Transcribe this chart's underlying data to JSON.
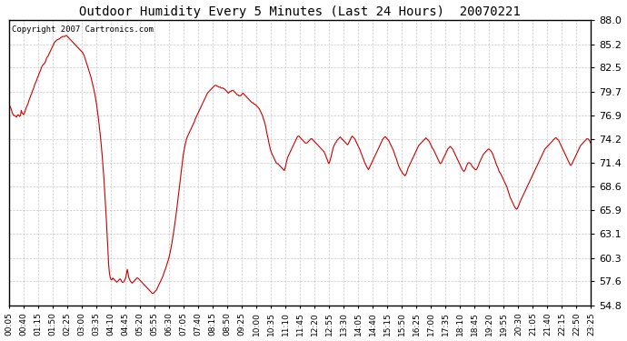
{
  "title": "Outdoor Humidity Every 5 Minutes (Last 24 Hours)  20070221",
  "copyright": "Copyright 2007 Cartronics.com",
  "line_color": "#cc0000",
  "bg_color": "#ffffff",
  "plot_bg_color": "#ffffff",
  "grid_color": "#bbbbbb",
  "ylim": [
    54.8,
    88.0
  ],
  "yticks": [
    54.8,
    57.6,
    60.3,
    63.1,
    65.9,
    68.6,
    71.4,
    74.2,
    76.9,
    79.7,
    82.5,
    85.2,
    88.0
  ],
  "xtick_labels": [
    "00:05",
    "00:40",
    "01:15",
    "01:50",
    "02:25",
    "03:00",
    "03:35",
    "04:10",
    "04:45",
    "05:20",
    "05:55",
    "06:30",
    "07:05",
    "07:40",
    "08:15",
    "08:50",
    "09:25",
    "10:00",
    "10:35",
    "11:10",
    "11:45",
    "12:20",
    "12:55",
    "13:30",
    "14:05",
    "14:40",
    "15:15",
    "15:50",
    "16:25",
    "17:00",
    "17:35",
    "18:10",
    "18:45",
    "19:20",
    "19:55",
    "20:30",
    "21:05",
    "21:40",
    "22:15",
    "22:50",
    "23:25"
  ],
  "humidity_values": [
    78.2,
    78.0,
    77.8,
    77.5,
    77.2,
    77.0,
    76.9,
    76.9,
    76.8,
    76.7,
    76.9,
    77.0,
    76.9,
    76.8,
    76.9,
    77.5,
    77.2,
    77.1,
    77.0,
    77.2,
    77.5,
    77.8,
    78.0,
    78.2,
    78.5,
    78.8,
    79.0,
    79.3,
    79.5,
    79.8,
    80.0,
    80.3,
    80.6,
    80.8,
    81.0,
    81.3,
    81.5,
    81.8,
    82.0,
    82.2,
    82.5,
    82.7,
    82.8,
    82.9,
    83.0,
    83.2,
    83.5,
    83.7,
    83.8,
    84.0,
    84.2,
    84.4,
    84.6,
    84.8,
    85.0,
    85.2,
    85.4,
    85.5,
    85.6,
    85.7,
    85.7,
    85.8,
    85.8,
    85.9,
    86.0,
    86.0,
    86.1,
    86.1,
    86.1,
    86.1,
    86.2,
    86.2,
    86.1,
    86.0,
    85.9,
    85.8,
    85.7,
    85.6,
    85.5,
    85.4,
    85.3,
    85.2,
    85.1,
    85.0,
    84.9,
    84.8,
    84.7,
    84.6,
    84.5,
    84.4,
    84.3,
    84.2,
    84.0,
    83.8,
    83.5,
    83.2,
    82.9,
    82.6,
    82.3,
    82.0,
    81.7,
    81.4,
    81.0,
    80.6,
    80.2,
    79.8,
    79.3,
    78.8,
    78.2,
    77.5,
    76.8,
    76.0,
    75.2,
    74.3,
    73.3,
    72.2,
    71.0,
    69.7,
    68.2,
    66.6,
    65.0,
    63.2,
    61.3,
    59.5,
    58.5,
    58.0,
    57.8,
    57.8,
    58.0,
    57.9,
    57.8,
    57.7,
    57.6,
    57.5,
    57.6,
    57.7,
    57.8,
    57.9,
    57.8,
    57.6,
    57.5,
    57.5,
    57.6,
    57.8,
    58.0,
    58.5,
    59.0,
    58.5,
    58.0,
    57.8,
    57.6,
    57.5,
    57.4,
    57.5,
    57.6,
    57.7,
    57.8,
    57.9,
    58.0,
    58.0,
    57.9,
    57.8,
    57.7,
    57.6,
    57.5,
    57.4,
    57.3,
    57.2,
    57.1,
    57.0,
    56.9,
    56.8,
    56.7,
    56.6,
    56.5,
    56.4,
    56.3,
    56.2,
    56.2,
    56.3,
    56.4,
    56.5,
    56.6,
    56.8,
    57.0,
    57.2,
    57.4,
    57.6,
    57.8,
    58.0,
    58.2,
    58.5,
    58.8,
    59.0,
    59.3,
    59.6,
    59.9,
    60.2,
    60.6,
    61.0,
    61.5,
    62.0,
    62.6,
    63.2,
    63.8,
    64.5,
    65.2,
    65.9,
    66.7,
    67.5,
    68.3,
    69.2,
    70.0,
    70.8,
    71.5,
    72.2,
    72.8,
    73.3,
    73.7,
    74.1,
    74.4,
    74.6,
    74.8,
    75.0,
    75.2,
    75.4,
    75.6,
    75.8,
    76.0,
    76.2,
    76.5,
    76.7,
    76.9,
    77.1,
    77.3,
    77.5,
    77.7,
    77.9,
    78.1,
    78.3,
    78.5,
    78.7,
    78.9,
    79.1,
    79.3,
    79.5,
    79.6,
    79.7,
    79.8,
    79.9,
    80.0,
    80.1,
    80.2,
    80.3,
    80.4,
    80.4,
    80.4,
    80.3,
    80.3,
    80.2,
    80.2,
    80.2,
    80.1,
    80.1,
    80.1,
    80.0,
    80.0,
    79.9,
    79.8,
    79.7,
    79.6,
    79.5,
    79.6,
    79.7,
    79.7,
    79.8,
    79.8,
    79.8,
    79.7,
    79.6,
    79.5,
    79.4,
    79.3,
    79.3,
    79.2,
    79.2,
    79.2,
    79.3,
    79.4,
    79.5,
    79.4,
    79.3,
    79.2,
    79.1,
    79.0,
    78.9,
    78.8,
    78.7,
    78.6,
    78.5,
    78.4,
    78.4,
    78.3,
    78.2,
    78.2,
    78.1,
    78.0,
    77.9,
    77.8,
    77.7,
    77.5,
    77.3,
    77.1,
    76.9,
    76.6,
    76.3,
    76.0,
    75.6,
    75.1,
    74.6,
    74.2,
    73.7,
    73.3,
    72.9,
    72.6,
    72.4,
    72.2,
    72.0,
    71.8,
    71.6,
    71.4,
    71.3,
    71.3,
    71.2,
    71.1,
    71.0,
    70.9,
    70.8,
    70.7,
    70.6,
    70.5,
    70.8,
    71.2,
    71.6,
    72.0,
    72.2,
    72.4,
    72.6,
    72.8,
    73.0,
    73.2,
    73.4,
    73.6,
    73.8,
    74.0,
    74.2,
    74.4,
    74.5,
    74.5,
    74.4,
    74.3,
    74.2,
    74.1,
    74.0,
    73.9,
    73.8,
    73.7,
    73.7,
    73.7,
    73.8,
    73.9,
    74.0,
    74.1,
    74.2,
    74.2,
    74.1,
    74.0,
    73.9,
    73.8,
    73.7,
    73.6,
    73.5,
    73.4,
    73.3,
    73.2,
    73.1,
    73.0,
    72.9,
    72.8,
    72.7,
    72.5,
    72.3,
    72.0,
    71.8,
    71.5,
    71.3,
    71.5,
    71.8,
    72.2,
    72.6,
    73.0,
    73.3,
    73.5,
    73.7,
    73.8,
    74.0,
    74.1,
    74.2,
    74.3,
    74.4,
    74.3,
    74.2,
    74.1,
    74.0,
    73.9,
    73.8,
    73.7,
    73.6,
    73.5,
    73.6,
    73.8,
    74.0,
    74.2,
    74.4,
    74.5,
    74.4,
    74.3,
    74.2,
    74.0,
    73.8,
    73.6,
    73.4,
    73.2,
    73.0,
    72.8,
    72.5,
    72.3,
    72.0,
    71.8,
    71.5,
    71.3,
    71.1,
    70.9,
    70.8,
    70.6,
    70.8,
    71.0,
    71.2,
    71.4,
    71.6,
    71.8,
    72.0,
    72.2,
    72.4,
    72.6,
    72.8,
    73.0,
    73.2,
    73.4,
    73.6,
    73.8,
    74.0,
    74.2,
    74.3,
    74.4,
    74.4,
    74.3,
    74.2,
    74.1,
    74.0,
    73.8,
    73.6,
    73.4,
    73.2,
    73.0,
    72.8,
    72.5,
    72.2,
    72.0,
    71.7,
    71.4,
    71.1,
    70.9,
    70.7,
    70.5,
    70.4,
    70.2,
    70.1,
    70.0,
    69.9,
    70.0,
    70.2,
    70.5,
    70.8,
    71.0,
    71.2,
    71.4,
    71.6,
    71.8,
    72.0,
    72.2,
    72.4,
    72.6,
    72.8,
    73.0,
    73.2,
    73.4,
    73.5,
    73.6,
    73.7,
    73.8,
    73.9,
    74.0,
    74.1,
    74.2,
    74.3,
    74.2,
    74.1,
    74.0,
    73.9,
    73.7,
    73.5,
    73.3,
    73.1,
    73.0,
    72.8,
    72.6,
    72.4,
    72.2,
    72.0,
    71.8,
    71.6,
    71.4,
    71.3,
    71.4,
    71.6,
    71.8,
    72.0,
    72.2,
    72.4,
    72.6,
    72.8,
    73.0,
    73.1,
    73.2,
    73.3,
    73.2,
    73.1,
    73.0,
    72.8,
    72.6,
    72.4,
    72.2,
    72.0,
    71.8,
    71.6,
    71.4,
    71.2,
    71.0,
    70.8,
    70.6,
    70.5,
    70.4,
    70.5,
    70.7,
    71.0,
    71.2,
    71.4,
    71.4,
    71.4,
    71.3,
    71.2,
    71.0,
    70.9,
    70.8,
    70.7,
    70.6,
    70.6,
    70.7,
    70.9,
    71.1,
    71.4,
    71.6,
    71.8,
    72.0,
    72.2,
    72.4,
    72.5,
    72.6,
    72.7,
    72.8,
    72.9,
    73.0,
    73.0,
    72.9,
    72.8,
    72.7,
    72.5,
    72.3,
    72.0,
    71.8,
    71.5,
    71.2,
    71.0,
    70.8,
    70.5,
    70.3,
    70.2,
    70.0,
    69.8,
    69.6,
    69.4,
    69.2,
    69.0,
    68.8,
    68.6,
    68.3,
    68.0,
    67.7,
    67.4,
    67.2,
    67.0,
    66.8,
    66.6,
    66.4,
    66.2,
    66.1,
    66.0,
    66.1,
    66.3,
    66.5,
    66.8,
    67.0,
    67.2,
    67.4,
    67.6,
    67.8,
    68.0,
    68.2,
    68.4,
    68.6,
    68.8,
    69.0,
    69.2,
    69.4,
    69.6,
    69.8,
    70.0,
    70.2,
    70.4,
    70.6,
    70.8,
    71.0,
    71.2,
    71.4,
    71.6,
    71.8,
    72.0,
    72.2,
    72.4,
    72.6,
    72.8,
    73.0,
    73.1,
    73.2,
    73.3,
    73.4,
    73.5,
    73.6,
    73.7,
    73.8,
    73.9,
    74.0,
    74.1,
    74.2,
    74.3,
    74.3,
    74.2,
    74.1,
    74.0,
    73.8,
    73.6,
    73.4,
    73.2,
    73.0,
    72.8,
    72.6,
    72.4,
    72.2,
    72.0,
    71.8,
    71.6,
    71.4,
    71.2,
    71.1,
    71.2,
    71.4,
    71.6,
    71.8,
    72.0,
    72.2,
    72.4,
    72.6,
    72.8,
    73.0,
    73.2,
    73.4,
    73.5,
    73.6,
    73.7,
    73.8,
    73.9,
    74.0,
    74.1,
    74.2,
    74.2,
    74.1,
    74.0,
    73.8,
    73.6
  ]
}
